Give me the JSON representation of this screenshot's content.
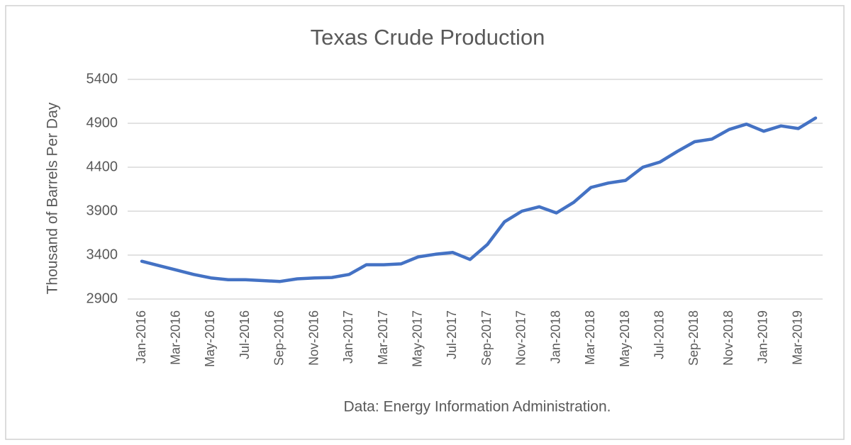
{
  "chart_data": {
    "type": "line",
    "title": "Texas Crude Production",
    "y_label": "Thousand of Barrels Per Day",
    "x_label": "Data: Energy Information Administration.",
    "categories": [
      "Jan-2016",
      null,
      "Mar-2016",
      null,
      "May-2016",
      null,
      "Jul-2016",
      null,
      "Sep-2016",
      null,
      "Nov-2016",
      null,
      "Jan-2017",
      null,
      "Mar-2017",
      null,
      "May-2017",
      null,
      "Jul-2017",
      null,
      "Sep-2017",
      null,
      "Nov-2017",
      null,
      "Jan-2018",
      null,
      "Mar-2018",
      null,
      "May-2018",
      null,
      "Jul-2018",
      null,
      "Sep-2018",
      null,
      "Nov-2018",
      null,
      "Jan-2019",
      null,
      "Mar-2019",
      null
    ],
    "series": [
      {
        "name": "Texas Crude Production",
        "color": "#4472c4",
        "values": [
          3330,
          3280,
          3230,
          3180,
          3140,
          3120,
          3120,
          3110,
          3100,
          3130,
          3140,
          3145,
          3180,
          3290,
          3290,
          3300,
          3380,
          3410,
          3430,
          3350,
          3520,
          3780,
          3900,
          3950,
          3880,
          4000,
          4170,
          4220,
          4250,
          4400,
          4460,
          4580,
          4690,
          4720,
          4830,
          4890,
          4810,
          4870,
          4840,
          4960
        ]
      }
    ],
    "ylim": [
      2900,
      5400
    ],
    "yticks": [
      2900,
      3400,
      3900,
      4400,
      4900,
      5400
    ],
    "grid": true
  }
}
